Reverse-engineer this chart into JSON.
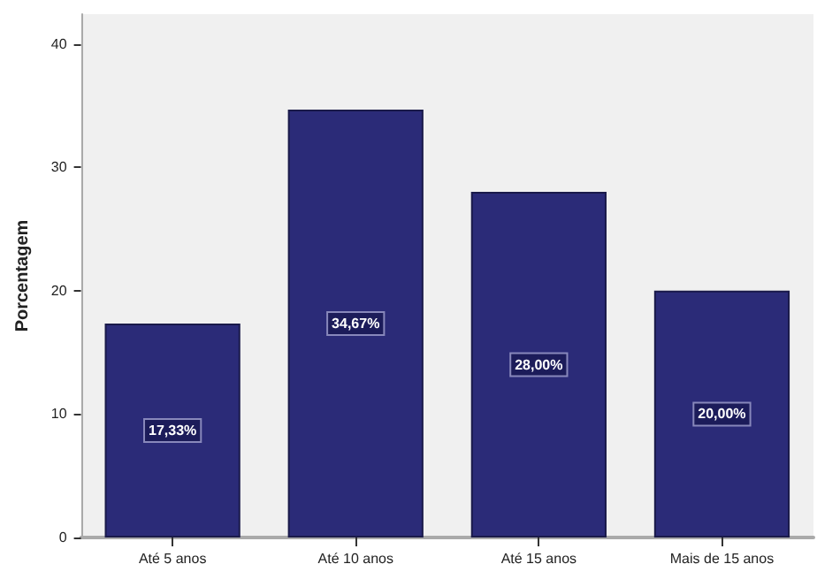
{
  "chart_data": {
    "type": "bar",
    "ylabel": "Porcentagem",
    "categories": [
      "Até 5 anos",
      "Até 10 anos",
      "Até 15 anos",
      "Mais de 15 anos"
    ],
    "values": [
      17.33,
      34.67,
      28,
      20
    ],
    "value_labels": [
      "17,33%",
      "34,67%",
      "28,00%",
      "20,00%"
    ],
    "color": "#2b2b78",
    "ylim": [
      0,
      42.4
    ],
    "yticks": [
      0,
      10,
      20,
      30,
      40
    ],
    "grid": false
  }
}
